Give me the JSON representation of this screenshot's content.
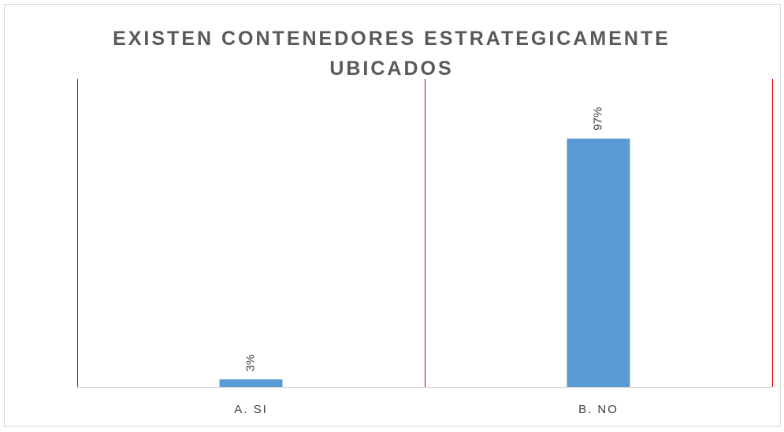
{
  "chart_data": {
    "type": "bar",
    "title": "EXISTEN CONTENEDORES ESTRATEGICAMENTE UBICADOS",
    "categories": [
      "A. SI",
      "B. NO"
    ],
    "values": [
      3,
      97
    ],
    "value_labels": [
      "3%",
      "97%"
    ],
    "color": "#5b9bd5",
    "ylim": [
      0,
      100
    ]
  }
}
